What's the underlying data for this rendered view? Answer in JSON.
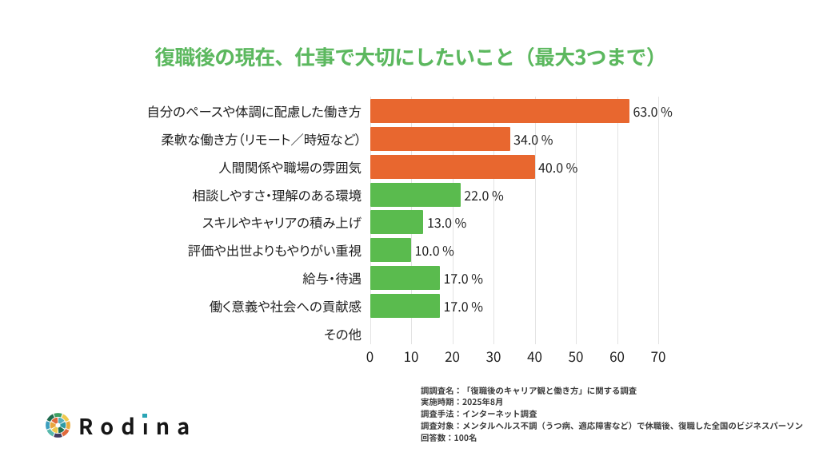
{
  "title": {
    "text": "復職後の現在、仕事で大切にしたいこと（最大3つまで）",
    "color": "#5CB85F"
  },
  "chart_data": {
    "type": "bar",
    "orientation": "horizontal",
    "title": "復職後の現在、仕事で大切にしたいこと（最大3つまで）",
    "categories": [
      "自分のペースや体調に配慮した働き方",
      "柔軟な働き方（リモート／時短など）",
      "人間関係や職場の雰囲気",
      "相談しやすさ・理解のある環境",
      "スキルやキャリアの積み上げ",
      "評価や出世よりもやりがい重視",
      "給与・待遇",
      "働く意義や社会への貢献感",
      "その他"
    ],
    "values": [
      63.0,
      34.0,
      40.0,
      22.0,
      13.0,
      10.0,
      17.0,
      17.0,
      0.0
    ],
    "value_labels": [
      "63.0 %",
      "34.0 %",
      "40.0 %",
      "22.0 %",
      "13.0 %",
      "10.0 %",
      "17.0 %",
      "17.0 %",
      ""
    ],
    "bar_colors": [
      "#E8672F",
      "#E8672F",
      "#E8672F",
      "#5ABB4E",
      "#5ABB4E",
      "#5ABB4E",
      "#5ABB4E",
      "#5ABB4E",
      "none"
    ],
    "xlabel": "",
    "ylabel": "",
    "xlim": [
      0,
      70
    ],
    "x_ticks": [
      0,
      10,
      20,
      30,
      40,
      50,
      60,
      70
    ],
    "grid": true,
    "legend": false
  },
  "colors": {
    "title_green": "#5CB85F",
    "bar_orange": "#E8672F",
    "bar_green": "#5ABB4E",
    "gridline": "#E3E3E3",
    "label_text": "#1F1F1F",
    "footnote_text": "#3C3C3C",
    "logo_text": "#161616",
    "logo_i_dot": "#2AA5B5"
  },
  "footnotes": {
    "lines": [
      "調調査名：「復職後のキャリア観と働き方」に関する調査",
      "実施時期：2025年8月",
      "調査手法：インターネット調査",
      "調査対象：メンタルヘルス不調（うつ病、適応障害など）で休職後、復職した全国のビジネスパーソン",
      "回答数：100名"
    ]
  },
  "logo": {
    "text": "Rodina",
    "icon": "aperture-color-wheel-icon",
    "icon_outer_colors": [
      "#3E9E62",
      "#EFC94D",
      "#E9AC3F",
      "#E0693C",
      "#413B60",
      "#57B8AC",
      "#3C9FBF",
      "#1F6B4E"
    ],
    "icon_inner_colors": [
      "#56B0BC",
      "#2D9AA5",
      "#20704F",
      "#EFC94D",
      "#E9A63D",
      "#E0693C"
    ]
  }
}
